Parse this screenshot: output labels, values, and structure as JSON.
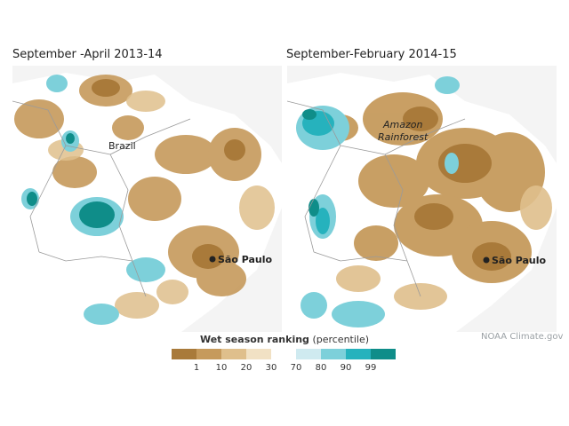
{
  "panels": [
    {
      "title": "September -April 2013-14",
      "labels": {
        "region": "Brazil",
        "city": "São Paulo"
      }
    },
    {
      "title": "September-February 2014-15",
      "labels": {
        "region_line1": "Amazon",
        "region_line2": "Rainforest",
        "city": "São Paulo"
      }
    }
  ],
  "credit": "NOAA Climate.gov",
  "legend": {
    "title_bold": "Wet season ranking",
    "title_rest": "(percentile)",
    "colors": [
      "#a97a3a",
      "#c69a5c",
      "#dfbf8c",
      "#f1e1c4",
      "#ffffff",
      "#cfeaf0",
      "#7dd0da",
      "#26b2bd",
      "#0f8d89"
    ],
    "ticks": [
      "1",
      "10",
      "20",
      "30",
      "70",
      "80",
      "90",
      "99"
    ]
  },
  "colors": {
    "very_dry": "#a97a3a",
    "dry": "#c69a5c",
    "moderately_dry": "#dfbf8c",
    "slightly_dry": "#f1e1c4",
    "normal": "#ffffff",
    "slightly_wet": "#cfeaf0",
    "wet": "#7dd0da",
    "very_wet": "#26b2bd",
    "extremely_wet": "#0f8d89",
    "ocean": "#f4f4f4",
    "border": "#9a9a9a"
  }
}
